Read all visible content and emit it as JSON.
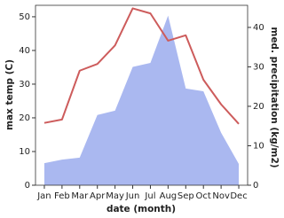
{
  "chart_data": {
    "type": "line",
    "x_label": "date (month)",
    "y_label": "max temp (C)",
    "y2_label": "med. precipitation (kg/m2)",
    "categories": [
      "Jan",
      "Feb",
      "Mar",
      "Apr",
      "May",
      "Jun",
      "Jul",
      "Aug",
      "Sep",
      "Oct",
      "Nov",
      "Dec"
    ],
    "series": [
      {
        "name": "med. precipitation",
        "type": "area",
        "axis": "y2",
        "color": "#aab8f0",
        "values": [
          5.6,
          6.5,
          7,
          17.8,
          18.9,
          30,
          31,
          43,
          24.5,
          23.8,
          13.3,
          5.4
        ]
      },
      {
        "name": "max temp",
        "type": "line",
        "axis": "y",
        "color": "#cd5c5c",
        "values": [
          18.5,
          19.5,
          34,
          36,
          41.5,
          52.5,
          51,
          42.9,
          44.5,
          31.3,
          24,
          18.2
        ]
      }
    ],
    "ylim": [
      0,
      53.4
    ],
    "yticks": [
      0,
      10,
      20,
      30,
      40,
      50
    ],
    "y2lim": [
      0,
      45.6
    ],
    "y2ticks": [
      0,
      10,
      20,
      30,
      40
    ]
  }
}
